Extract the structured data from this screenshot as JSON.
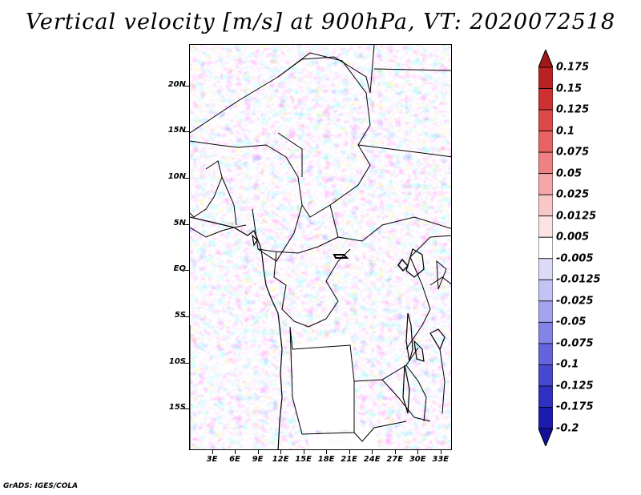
{
  "title": "Vertical velocity [m/s] at 900hPa, VT: 2020072518",
  "credit": "GrADS: IGES/COLA",
  "map": {
    "type": "shaded-field-map",
    "lat_labels": [
      "20N",
      "15N",
      "10N",
      "5N",
      "EQ",
      "5S",
      "10S",
      "15S"
    ],
    "lon_labels": [
      "3E",
      "6E",
      "9E",
      "12E",
      "15E",
      "18E",
      "21E",
      "24E",
      "27E",
      "30E",
      "33E"
    ],
    "lat_range": [
      -19.5,
      24.5
    ],
    "lon_range": [
      0,
      34.5
    ]
  },
  "colorbar": {
    "labels": [
      "0.175",
      "0.15",
      "0.125",
      "0.1",
      "0.075",
      "0.05",
      "0.025",
      "0.0125",
      "0.005",
      "-0.005",
      "-0.0125",
      "-0.025",
      "-0.05",
      "-0.075",
      "-0.1",
      "-0.125",
      "-0.175",
      "-0.2"
    ],
    "colors": [
      "#a01818",
      "#b82222",
      "#cc3030",
      "#dd4848",
      "#e86464",
      "#ee8282",
      "#f4a6a6",
      "#f8c8c8",
      "#fce4e4",
      "#ffffff",
      "#dcdcf8",
      "#c4c4f4",
      "#a4a4ee",
      "#8484e6",
      "#6464dc",
      "#4848d0",
      "#3030c0",
      "#1c1cac",
      "#10109a"
    ]
  },
  "colors": {
    "positive": "#e05050",
    "negative": "#5a5ae0",
    "borders": "#000000"
  }
}
